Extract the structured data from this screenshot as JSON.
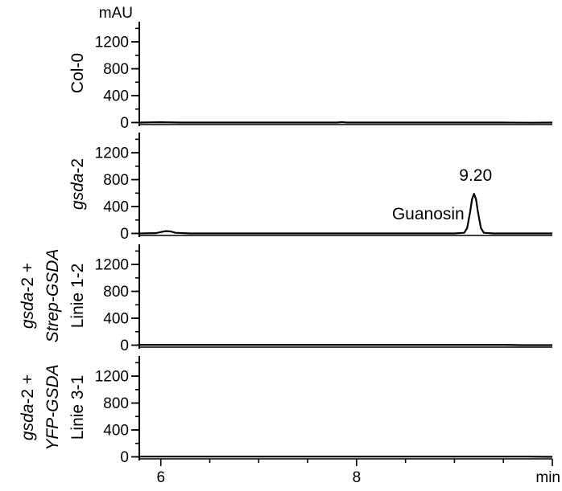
{
  "chart_data": {
    "type": "line",
    "y_unit": "mAU",
    "x_unit": "min",
    "xlim": [
      5.78,
      10.0
    ],
    "x_ticks": [
      {
        "value": 6,
        "label": "6"
      },
      {
        "value": 8,
        "label": "8"
      }
    ],
    "x_minor_tick_step": 0.5,
    "ylim": [
      -30,
      1500
    ],
    "y_ticks": [
      {
        "value": 0,
        "label": "0"
      },
      {
        "value": 400,
        "label": "400"
      },
      {
        "value": 800,
        "label": "800"
      },
      {
        "value": 1200,
        "label": "1200"
      }
    ],
    "y_minor_tick_step": 200,
    "panels": [
      {
        "label_lines": [
          {
            "segments": [
              {
                "text": "Col-0",
                "italic": false
              }
            ]
          }
        ],
        "series": [
          {
            "x": [
              5.78,
              6.0,
              6.2,
              7.8,
              7.85,
              7.9,
              9.5,
              9.8,
              10.0
            ],
            "y": [
              0,
              5,
              0,
              0,
              6,
              0,
              0,
              -3,
              0
            ]
          }
        ]
      },
      {
        "label_lines": [
          {
            "segments": [
              {
                "text": "gsda",
                "italic": true
              },
              {
                "text": "-2",
                "italic": false
              }
            ]
          }
        ],
        "series": [
          {
            "x": [
              5.78,
              5.95,
              6.0,
              6.05,
              6.1,
              6.15,
              6.3,
              9.0,
              9.1,
              9.13,
              9.16,
              9.18,
              9.2,
              9.22,
              9.24,
              9.27,
              9.3,
              9.4,
              10.0
            ],
            "y": [
              0,
              5,
              20,
              35,
              30,
              10,
              0,
              0,
              10,
              80,
              320,
              510,
              590,
              510,
              320,
              80,
              10,
              0,
              0
            ]
          }
        ],
        "annotations": [
          {
            "text": "9.20",
            "x": 9.2
          },
          {
            "text": "Guanosin",
            "x": 9.2
          }
        ]
      },
      {
        "label_lines": [
          {
            "segments": [
              {
                "text": "gsda",
                "italic": true
              },
              {
                "text": "-2 +",
                "italic": false
              }
            ]
          },
          {
            "segments": [
              {
                "text": "Strep-GSDA",
                "italic": true
              }
            ]
          },
          {
            "segments": [
              {
                "text": "Linie 1-2",
                "italic": false
              }
            ]
          }
        ],
        "series": [
          {
            "x": [
              5.78,
              7.0,
              8.0,
              9.5,
              9.7,
              10.0
            ],
            "y": [
              5,
              5,
              5,
              5,
              0,
              0
            ]
          }
        ]
      },
      {
        "label_lines": [
          {
            "segments": [
              {
                "text": "gsda",
                "italic": true
              },
              {
                "text": "-2 +",
                "italic": false
              }
            ]
          },
          {
            "segments": [
              {
                "text": "YFP-GSDA",
                "italic": true
              }
            ]
          },
          {
            "segments": [
              {
                "text": "Linie 3-1",
                "italic": false
              }
            ]
          }
        ],
        "series": [
          {
            "x": [
              5.78,
              7.0,
              8.0,
              9.0,
              9.75,
              10.0
            ],
            "y": [
              3,
              3,
              3,
              3,
              3,
              0
            ]
          }
        ]
      }
    ]
  }
}
